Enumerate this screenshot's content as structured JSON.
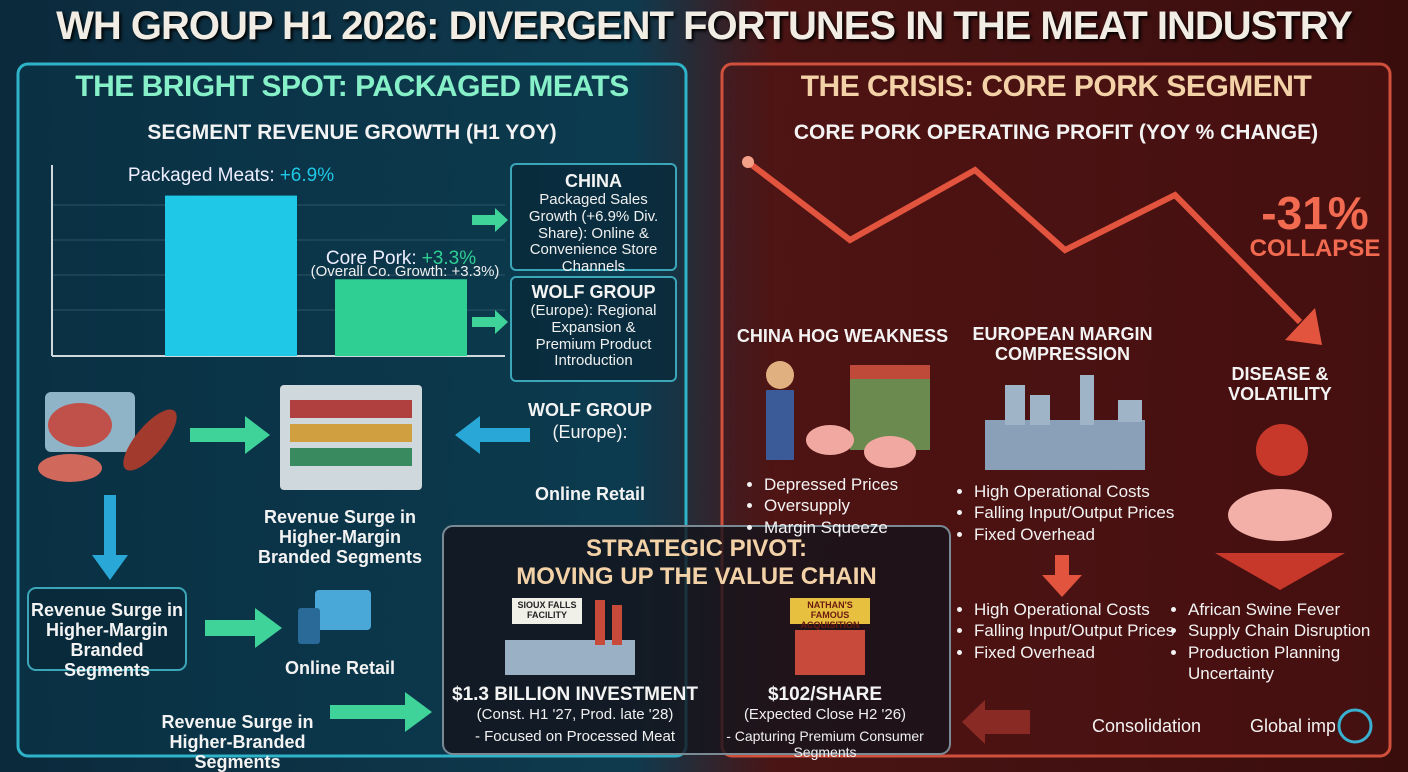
{
  "header": {
    "title": "WH GROUP H1 2026: DIVERGENT FORTUNES IN THE MEAT INDUSTRY"
  },
  "left_panel": {
    "title": "THE BRIGHT SPOT: PACKAGED MEATS",
    "china_box": {
      "title": "CHINA",
      "text": "Packaged Sales Growth (+6.9% Div. Share): Online & Convenience Store Channels"
    },
    "wolf_box": {
      "title": "WOLF GROUP",
      "text": "(Europe): Regional Expansion & Premium Product Introduction"
    },
    "flow": {
      "wolf_title": "WOLF GROUP",
      "wolf_sub": "(Europe):",
      "wolf_channel": "Online Retail",
      "center_text": "Revenue Surge in Higher-Margin Branded Segments",
      "left_box": "Revenue Surge in Higher-Margin Branded Segments",
      "online_retail": "Online Retail",
      "bottom_text": "Revenue Surge in Higher-Branded Segments"
    }
  },
  "chart_data": {
    "type": "bar",
    "title": "SEGMENT REVENUE GROWTH (H1 YOY)",
    "categories": [
      "Packaged Meats:",
      "Core Pork:"
    ],
    "values": [
      6.9,
      3.3
    ],
    "value_labels": [
      "+6.9%",
      "+3.3%"
    ],
    "annotation": "(Overall Co. Growth: +3.3%)",
    "colors": [
      "#1fc8e6",
      "#2fcf93"
    ],
    "ylim": [
      0,
      8
    ]
  },
  "right_panel": {
    "title": "THE CRISIS: CORE PORK SEGMENT",
    "subtitle": "CORE PORK OPERATING PROFIT (YOY % CHANGE)",
    "headline": "-31%",
    "headline_sub": "COLLAPSE",
    "columns": [
      {
        "title": "CHINA HOG WEAKNESS",
        "bullets": [
          "Depressed Prices",
          "Oversupply",
          "Margin Squeeze"
        ]
      },
      {
        "title": "EUROPEAN MARGIN COMPRESSION",
        "bullets": [
          "High Operational Costs",
          "Falling Input/Output Prices",
          "Fixed Overhead"
        ],
        "bullets_2": [
          "High Operational Costs",
          "Falling Input/Output Prices",
          "Fixed Overhead"
        ]
      },
      {
        "title": "DISEASE & VOLATILITY",
        "bullets": [
          "African Swine Fever",
          "Supply Chain Disruption",
          "Production Planning Uncertainty"
        ]
      }
    ],
    "footer": [
      "Consolidation",
      "Global imp"
    ]
  },
  "pivot": {
    "title": "STRATEGIC PIVOT:",
    "subtitle": "MOVING UP THE VALUE CHAIN",
    "items": [
      {
        "sign": "SIOUX FALLS FACILITY",
        "headline": "$1.3 BILLION INVESTMENT",
        "detail": "(Const. H1 '27, Prod. late '28)",
        "note": "- Focused on Processed Meat"
      },
      {
        "sign": "NATHAN'S FAMOUS ACQUISITION",
        "headline": "$102/SHARE",
        "detail": "(Expected Close H2 '26)",
        "note": "- Capturing Premium Consumer Segments"
      }
    ]
  }
}
